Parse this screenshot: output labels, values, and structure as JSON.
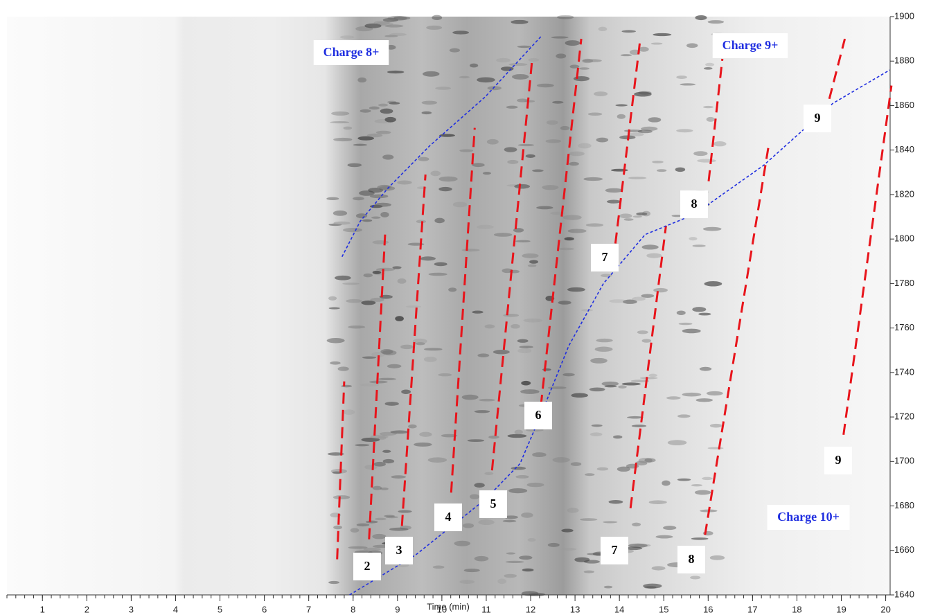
{
  "chart_data": {
    "type": "line",
    "x_label": "Time (min)",
    "xlim": [
      0.2,
      20.1
    ],
    "xticks": [
      1,
      2,
      3,
      4,
      5,
      6,
      7,
      8,
      9,
      10,
      11,
      12,
      13,
      14,
      15,
      16,
      17,
      18,
      19,
      20
    ],
    "ylim": [
      1640,
      1900
    ],
    "yticks": [
      1640,
      1660,
      1680,
      1700,
      1720,
      1740,
      1760,
      1780,
      1800,
      1820,
      1840,
      1860,
      1880,
      1900
    ],
    "series": [
      {
        "color": "#e8141b",
        "dash": "long",
        "x": [
          7.64,
          7.8
        ],
        "values": [
          1656,
          1736
        ]
      },
      {
        "color": "#e8141b",
        "dash": "long",
        "x": [
          8.36,
          8.72
        ],
        "values": [
          1665,
          1802
        ]
      },
      {
        "color": "#e8141b",
        "dash": "long",
        "x": [
          9.1,
          9.63
        ],
        "values": [
          1671,
          1829
        ]
      },
      {
        "color": "#e8141b",
        "dash": "long",
        "x": [
          10.21,
          10.74
        ],
        "values": [
          1686,
          1850
        ]
      },
      {
        "color": "#e8141b",
        "dash": "long",
        "x": [
          11.13,
          12.03
        ],
        "values": [
          1696,
          1880
        ]
      },
      {
        "color": "#e8141b",
        "dash": "long",
        "x": [
          12.23,
          13.14
        ],
        "values": [
          1725,
          1890
        ]
      },
      {
        "color": "#e8141b",
        "dash": "long",
        "x": [
          13.91,
          14.47
        ],
        "values": [
          1798,
          1890
        ]
      },
      {
        "color": "#e8141b",
        "dash": "long",
        "x": [
          16.01,
          16.32
        ],
        "values": [
          1826,
          1881
        ]
      },
      {
        "color": "#e8141b",
        "dash": "long",
        "x": [
          18.73,
          19.08
        ],
        "values": [
          1863,
          1890
        ]
      },
      {
        "color": "#e8141b",
        "dash": "long",
        "x": [
          14.25,
          15.05
        ],
        "values": [
          1679,
          1806
        ]
      },
      {
        "color": "#e8141b",
        "dash": "long",
        "x": [
          15.93,
          17.37
        ],
        "values": [
          1667,
          1843
        ]
      },
      {
        "color": "#e8141b",
        "dash": "long",
        "x": [
          19.05,
          20.13
        ],
        "values": [
          1712,
          1869
        ]
      },
      {
        "color": "#1f2ee0",
        "dash": "short",
        "x": [
          7.75,
          8.16,
          8.79,
          9.73,
          10.98,
          12.23
        ],
        "values": [
          1792,
          1808,
          1823,
          1842,
          1864,
          1891
        ]
      },
      {
        "color": "#1f2ee0",
        "dash": "short",
        "x": [
          7.92,
          9.41,
          10.98,
          11.76,
          12.23,
          12.86,
          13.64,
          14.58,
          15.68,
          17.24,
          18.81,
          20.09
        ],
        "values": [
          1640,
          1658,
          1683,
          1699,
          1721,
          1752,
          1780,
          1802,
          1811,
          1833,
          1861,
          1876
        ]
      }
    ],
    "annotations": [
      {
        "text": "Charge 8+",
        "color": "#1f2ee0"
      },
      {
        "text": "Charge 9+",
        "color": "#1f2ee0"
      },
      {
        "text": "Charge 10+",
        "color": "#1f2ee0"
      },
      {
        "text": "2",
        "color": "#000000"
      },
      {
        "text": "3",
        "color": "#000000"
      },
      {
        "text": "4",
        "color": "#000000"
      },
      {
        "text": "5",
        "color": "#000000"
      },
      {
        "text": "6",
        "color": "#000000"
      },
      {
        "text": "7",
        "color": "#000000"
      },
      {
        "text": "7",
        "color": "#000000"
      },
      {
        "text": "8",
        "color": "#000000"
      },
      {
        "text": "8",
        "color": "#000000"
      },
      {
        "text": "9",
        "color": "#000000"
      },
      {
        "text": "9",
        "color": "#000000"
      }
    ]
  }
}
